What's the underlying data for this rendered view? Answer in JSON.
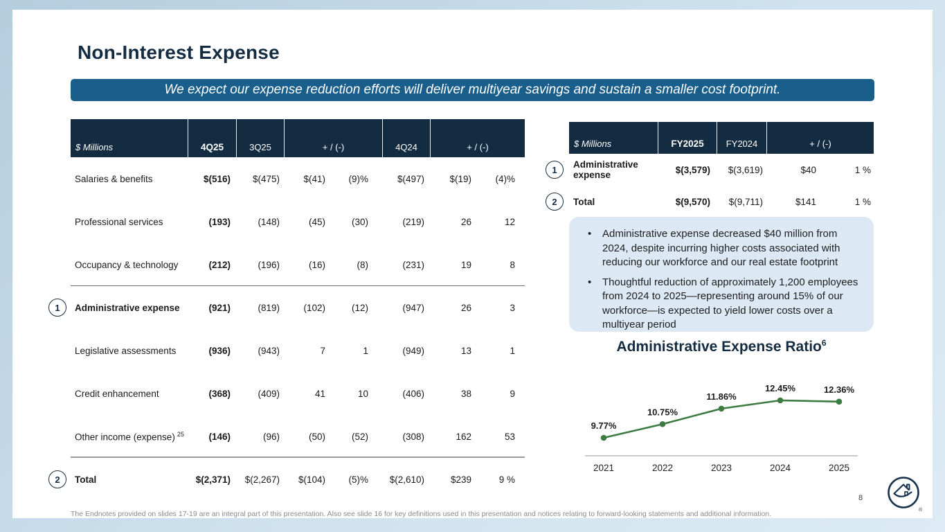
{
  "theme": {
    "navy": "#142c41",
    "title_navy": "#17334d",
    "banner_blue": "#1a5f8c",
    "bullet_box_bg": "#dce9f4",
    "chart_green": "#3c7b41"
  },
  "slide": {
    "title": "Non-Interest Expense",
    "banner": "We expect our expense reduction efforts will deliver multiyear savings and sustain a smaller cost footprint.",
    "page_number": "8",
    "footnote": "The Endnotes provided on slides 17-19 are an integral part of this presentation. Also see slide 16 for key definitions used in this presentation and notices relating to forward-looking statements and additional information.",
    "logo": "freddie-mac-house-logo"
  },
  "quarterly_table": {
    "header": {
      "unit": "$ Millions",
      "c1": "4Q25",
      "c2": "3Q25",
      "c3": "+ / (-)",
      "c4": "4Q24",
      "c5": "+ / (-)"
    },
    "rows": [
      {
        "label": "Salaries & benefits",
        "values": [
          "$(516)",
          "$(475)",
          "$(41)",
          "(9)%",
          "$(497)",
          "$(19)",
          "(4)%"
        ]
      },
      {
        "label": "Professional services",
        "values": [
          "(193)",
          "(148)",
          "(45)",
          "(30)",
          "(219)",
          "26",
          "12"
        ]
      },
      {
        "label": "Occupancy & technology",
        "values": [
          "(212)",
          "(196)",
          "(16)",
          "(8)",
          "(231)",
          "19",
          "8"
        ],
        "divider_after": "thin"
      },
      {
        "label": "Administrative expense",
        "marker": "1",
        "bold": true,
        "values": [
          "(921)",
          "(819)",
          "(102)",
          "(12)",
          "(947)",
          "26",
          "3"
        ]
      },
      {
        "label": "Legislative assessments",
        "values": [
          "(936)",
          "(943)",
          "7",
          "1",
          "(949)",
          "13",
          "1"
        ]
      },
      {
        "label": "Credit enhancement",
        "values": [
          "(368)",
          "(409)",
          "41",
          "10",
          "(406)",
          "38",
          "9"
        ]
      },
      {
        "label": "Other income (expense)",
        "label_sup": "25",
        "values": [
          "(146)",
          "(96)",
          "(50)",
          "(52)",
          "(308)",
          "162",
          "53"
        ],
        "divider_after": "thick"
      },
      {
        "label": "Total",
        "marker": "2",
        "bold": true,
        "values": [
          "$(2,371)",
          "$(2,267)",
          "$(104)",
          "(5)%",
          "$(2,610)",
          "$239",
          "9 %"
        ]
      }
    ]
  },
  "annual_table": {
    "header": {
      "unit": "$ Millions",
      "c1": "FY2025",
      "c2": "FY2024",
      "c3": "+ / (-)"
    },
    "rows": [
      {
        "label": "Administrative expense",
        "marker": "1",
        "bold": true,
        "values": [
          "$(3,579)",
          "$(3,619)",
          "$40",
          "1 %"
        ]
      },
      {
        "label": "Total",
        "marker": "2",
        "bold": true,
        "values": [
          "$(9,570)",
          "$(9,711)",
          "$141",
          "1 %"
        ]
      }
    ]
  },
  "bullets": [
    "Administrative expense decreased $40 million from 2024, despite incurring higher costs associated with reducing our workforce and our real estate footprint",
    "Thoughtful reduction of approximately 1,200 employees from 2024 to 2025—representing around 15% of our workforce—is expected to yield lower costs over a multiyear period"
  ],
  "chart_data": {
    "type": "line",
    "title": "Administrative Expense Ratio",
    "title_sup": "6",
    "categories": [
      "2021",
      "2022",
      "2023",
      "2024",
      "2025"
    ],
    "values": [
      9.77,
      10.75,
      11.86,
      12.45,
      12.36
    ],
    "labels": [
      "9.77%",
      "10.75%",
      "11.86%",
      "12.45%",
      "12.36%"
    ],
    "ylabel": "",
    "xlabel": "",
    "grid": false,
    "legend": "none",
    "line_color": "#3c7b41"
  }
}
